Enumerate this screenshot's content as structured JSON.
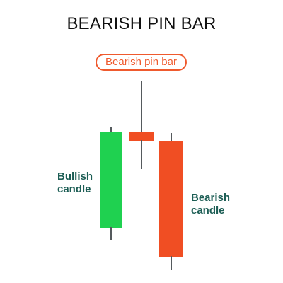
{
  "title": "BEARISH PIN BAR",
  "callout": "Bearish pin bar",
  "labels": {
    "bullish_line1": "Bullish",
    "bullish_line2": "candle",
    "bearish_line1": "Bearish",
    "bearish_line2": "candle"
  },
  "colors": {
    "bullish": "#1fd150",
    "bearish": "#f04e23",
    "wick": "#555a5d",
    "label_text": "#1d5e55",
    "callout": "#ef5a2e"
  }
}
